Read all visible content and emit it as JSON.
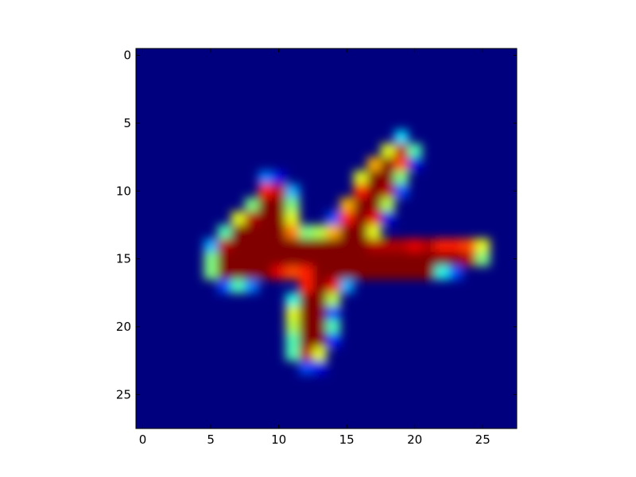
{
  "chart_data": {
    "type": "heatmap",
    "title": "",
    "xlabel": "",
    "ylabel": "",
    "colormap": "jet",
    "interpolation": "smooth",
    "grid": false,
    "legend": "none",
    "xlim": [
      -0.5,
      27.5
    ],
    "ylim": [
      27.5,
      -0.5
    ],
    "x_ticks": [
      0,
      5,
      10,
      15,
      20,
      25
    ],
    "y_ticks": [
      0,
      5,
      10,
      15,
      20,
      25
    ],
    "x_tick_labels": [
      "0",
      "5",
      "10",
      "15",
      "20",
      "25"
    ],
    "y_tick_labels": [
      "0",
      "5",
      "10",
      "15",
      "20",
      "25"
    ],
    "value_range": [
      0,
      1
    ],
    "grid_size": [
      28,
      28
    ],
    "values": [
      [
        0,
        0,
        0,
        0,
        0,
        0,
        0,
        0,
        0,
        0,
        0,
        0,
        0,
        0,
        0,
        0,
        0,
        0,
        0,
        0,
        0,
        0,
        0,
        0,
        0,
        0,
        0,
        0
      ],
      [
        0,
        0,
        0,
        0,
        0,
        0,
        0,
        0,
        0,
        0,
        0,
        0,
        0,
        0,
        0,
        0,
        0,
        0,
        0,
        0,
        0,
        0,
        0,
        0,
        0,
        0,
        0,
        0
      ],
      [
        0,
        0,
        0,
        0,
        0,
        0,
        0,
        0,
        0,
        0,
        0,
        0,
        0,
        0,
        0,
        0,
        0,
        0,
        0,
        0,
        0,
        0,
        0,
        0,
        0,
        0,
        0,
        0
      ],
      [
        0,
        0,
        0,
        0,
        0,
        0,
        0,
        0,
        0,
        0,
        0,
        0,
        0,
        0,
        0,
        0,
        0,
        0,
        0,
        0,
        0,
        0,
        0,
        0,
        0,
        0,
        0,
        0
      ],
      [
        0,
        0,
        0,
        0,
        0,
        0,
        0,
        0,
        0,
        0,
        0,
        0,
        0,
        0,
        0,
        0,
        0,
        0,
        0,
        0,
        0,
        0,
        0,
        0,
        0,
        0,
        0,
        0
      ],
      [
        0,
        0,
        0,
        0,
        0,
        0,
        0,
        0,
        0,
        0,
        0,
        0,
        0,
        0,
        0,
        0,
        0,
        0,
        0,
        0,
        0,
        0,
        0,
        0,
        0,
        0,
        0,
        0
      ],
      [
        0,
        0,
        0,
        0,
        0,
        0,
        0,
        0,
        0,
        0,
        0,
        0,
        0,
        0,
        0,
        0,
        0,
        0,
        0,
        0.35,
        0,
        0,
        0,
        0,
        0,
        0,
        0,
        0
      ],
      [
        0,
        0,
        0,
        0,
        0,
        0,
        0,
        0,
        0,
        0,
        0,
        0,
        0,
        0,
        0,
        0,
        0,
        0,
        0.6,
        0.95,
        0.45,
        0,
        0,
        0,
        0,
        0,
        0,
        0
      ],
      [
        0,
        0,
        0,
        0,
        0,
        0,
        0,
        0,
        0,
        0,
        0,
        0,
        0,
        0,
        0,
        0,
        0,
        0.7,
        1,
        0.8,
        0.1,
        0,
        0,
        0,
        0,
        0,
        0,
        0
      ],
      [
        0,
        0,
        0,
        0,
        0,
        0,
        0,
        0,
        0,
        0.25,
        0.1,
        0,
        0,
        0,
        0,
        0,
        0.6,
        1,
        1,
        0.5,
        0,
        0,
        0,
        0,
        0,
        0,
        0,
        0
      ],
      [
        0,
        0,
        0,
        0,
        0,
        0,
        0,
        0,
        0,
        0.85,
        0.95,
        0.3,
        0,
        0,
        0,
        0,
        0.85,
        1,
        0.95,
        0.2,
        0,
        0,
        0,
        0,
        0,
        0,
        0,
        0
      ],
      [
        0,
        0,
        0,
        0,
        0,
        0,
        0,
        0,
        0.5,
        1,
        1,
        0.5,
        0,
        0,
        0,
        0.7,
        1,
        1,
        0.55,
        0,
        0,
        0,
        0,
        0,
        0,
        0,
        0,
        0
      ],
      [
        0,
        0,
        0,
        0,
        0,
        0,
        0,
        0.6,
        0.95,
        1,
        1,
        0.6,
        0,
        0,
        0.2,
        0.85,
        1,
        0.9,
        0.1,
        0,
        0,
        0,
        0,
        0,
        0,
        0,
        0,
        0
      ],
      [
        0,
        0,
        0,
        0,
        0,
        0,
        0.45,
        1,
        1,
        1,
        1,
        0.75,
        0.5,
        0.55,
        0.7,
        1,
        1,
        0.6,
        0,
        0,
        0,
        0,
        0,
        0,
        0,
        0,
        0,
        0
      ],
      [
        0,
        0,
        0,
        0,
        0,
        0.3,
        0.95,
        1,
        1,
        1,
        1,
        1,
        1,
        1,
        1,
        1,
        1,
        0.95,
        0.95,
        0.95,
        0.9,
        0.95,
        0.85,
        0.85,
        0.8,
        0.6,
        0,
        0
      ],
      [
        0,
        0,
        0,
        0,
        0,
        0.5,
        1,
        1,
        1,
        1,
        1,
        1,
        1,
        1,
        1,
        1,
        1,
        1,
        1,
        1,
        1,
        1,
        1,
        1,
        0.95,
        0.5,
        0,
        0
      ],
      [
        0,
        0,
        0,
        0,
        0,
        0.5,
        1,
        1,
        1,
        1,
        0.9,
        0.8,
        0.85,
        1,
        1,
        1,
        1,
        1,
        1,
        1,
        1,
        1,
        0.4,
        0.2,
        0,
        0,
        0,
        0
      ],
      [
        0,
        0,
        0,
        0,
        0,
        0,
        0.2,
        0.45,
        0.25,
        0,
        0,
        0,
        0.85,
        1,
        0.9,
        0.3,
        0,
        0,
        0,
        0,
        0,
        0,
        0,
        0,
        0,
        0,
        0,
        0
      ],
      [
        0,
        0,
        0,
        0,
        0,
        0,
        0,
        0,
        0,
        0,
        0,
        0.4,
        1,
        1,
        0.55,
        0,
        0,
        0,
        0,
        0,
        0,
        0,
        0,
        0,
        0,
        0,
        0,
        0
      ],
      [
        0,
        0,
        0,
        0,
        0,
        0,
        0,
        0,
        0,
        0,
        0,
        0.6,
        1,
        1,
        0.2,
        0,
        0,
        0,
        0,
        0,
        0,
        0,
        0,
        0,
        0,
        0,
        0,
        0
      ],
      [
        0,
        0,
        0,
        0,
        0,
        0,
        0,
        0,
        0,
        0,
        0,
        0.55,
        1,
        1,
        0.45,
        0,
        0,
        0,
        0,
        0,
        0,
        0,
        0,
        0,
        0,
        0,
        0,
        0
      ],
      [
        0,
        0,
        0,
        0,
        0,
        0,
        0,
        0,
        0,
        0,
        0,
        0.45,
        1,
        1,
        0.15,
        0,
        0,
        0,
        0,
        0,
        0,
        0,
        0,
        0,
        0,
        0,
        0,
        0
      ],
      [
        0,
        0,
        0,
        0,
        0,
        0,
        0,
        0,
        0,
        0,
        0,
        0.45,
        0.95,
        0.6,
        0,
        0,
        0,
        0,
        0,
        0,
        0,
        0,
        0,
        0,
        0,
        0,
        0,
        0
      ],
      [
        0,
        0,
        0,
        0,
        0,
        0,
        0,
        0,
        0,
        0,
        0,
        0,
        0.2,
        0.1,
        0,
        0,
        0,
        0,
        0,
        0,
        0,
        0,
        0,
        0,
        0,
        0,
        0,
        0
      ],
      [
        0,
        0,
        0,
        0,
        0,
        0,
        0,
        0,
        0,
        0,
        0,
        0,
        0,
        0,
        0,
        0,
        0,
        0,
        0,
        0,
        0,
        0,
        0,
        0,
        0,
        0,
        0,
        0
      ],
      [
        0,
        0,
        0,
        0,
        0,
        0,
        0,
        0,
        0,
        0,
        0,
        0,
        0,
        0,
        0,
        0,
        0,
        0,
        0,
        0,
        0,
        0,
        0,
        0,
        0,
        0,
        0,
        0
      ],
      [
        0,
        0,
        0,
        0,
        0,
        0,
        0,
        0,
        0,
        0,
        0,
        0,
        0,
        0,
        0,
        0,
        0,
        0,
        0,
        0,
        0,
        0,
        0,
        0,
        0,
        0,
        0,
        0
      ],
      [
        0,
        0,
        0,
        0,
        0,
        0,
        0,
        0,
        0,
        0,
        0,
        0,
        0,
        0,
        0,
        0,
        0,
        0,
        0,
        0,
        0,
        0,
        0,
        0,
        0,
        0,
        0,
        0
      ]
    ]
  }
}
